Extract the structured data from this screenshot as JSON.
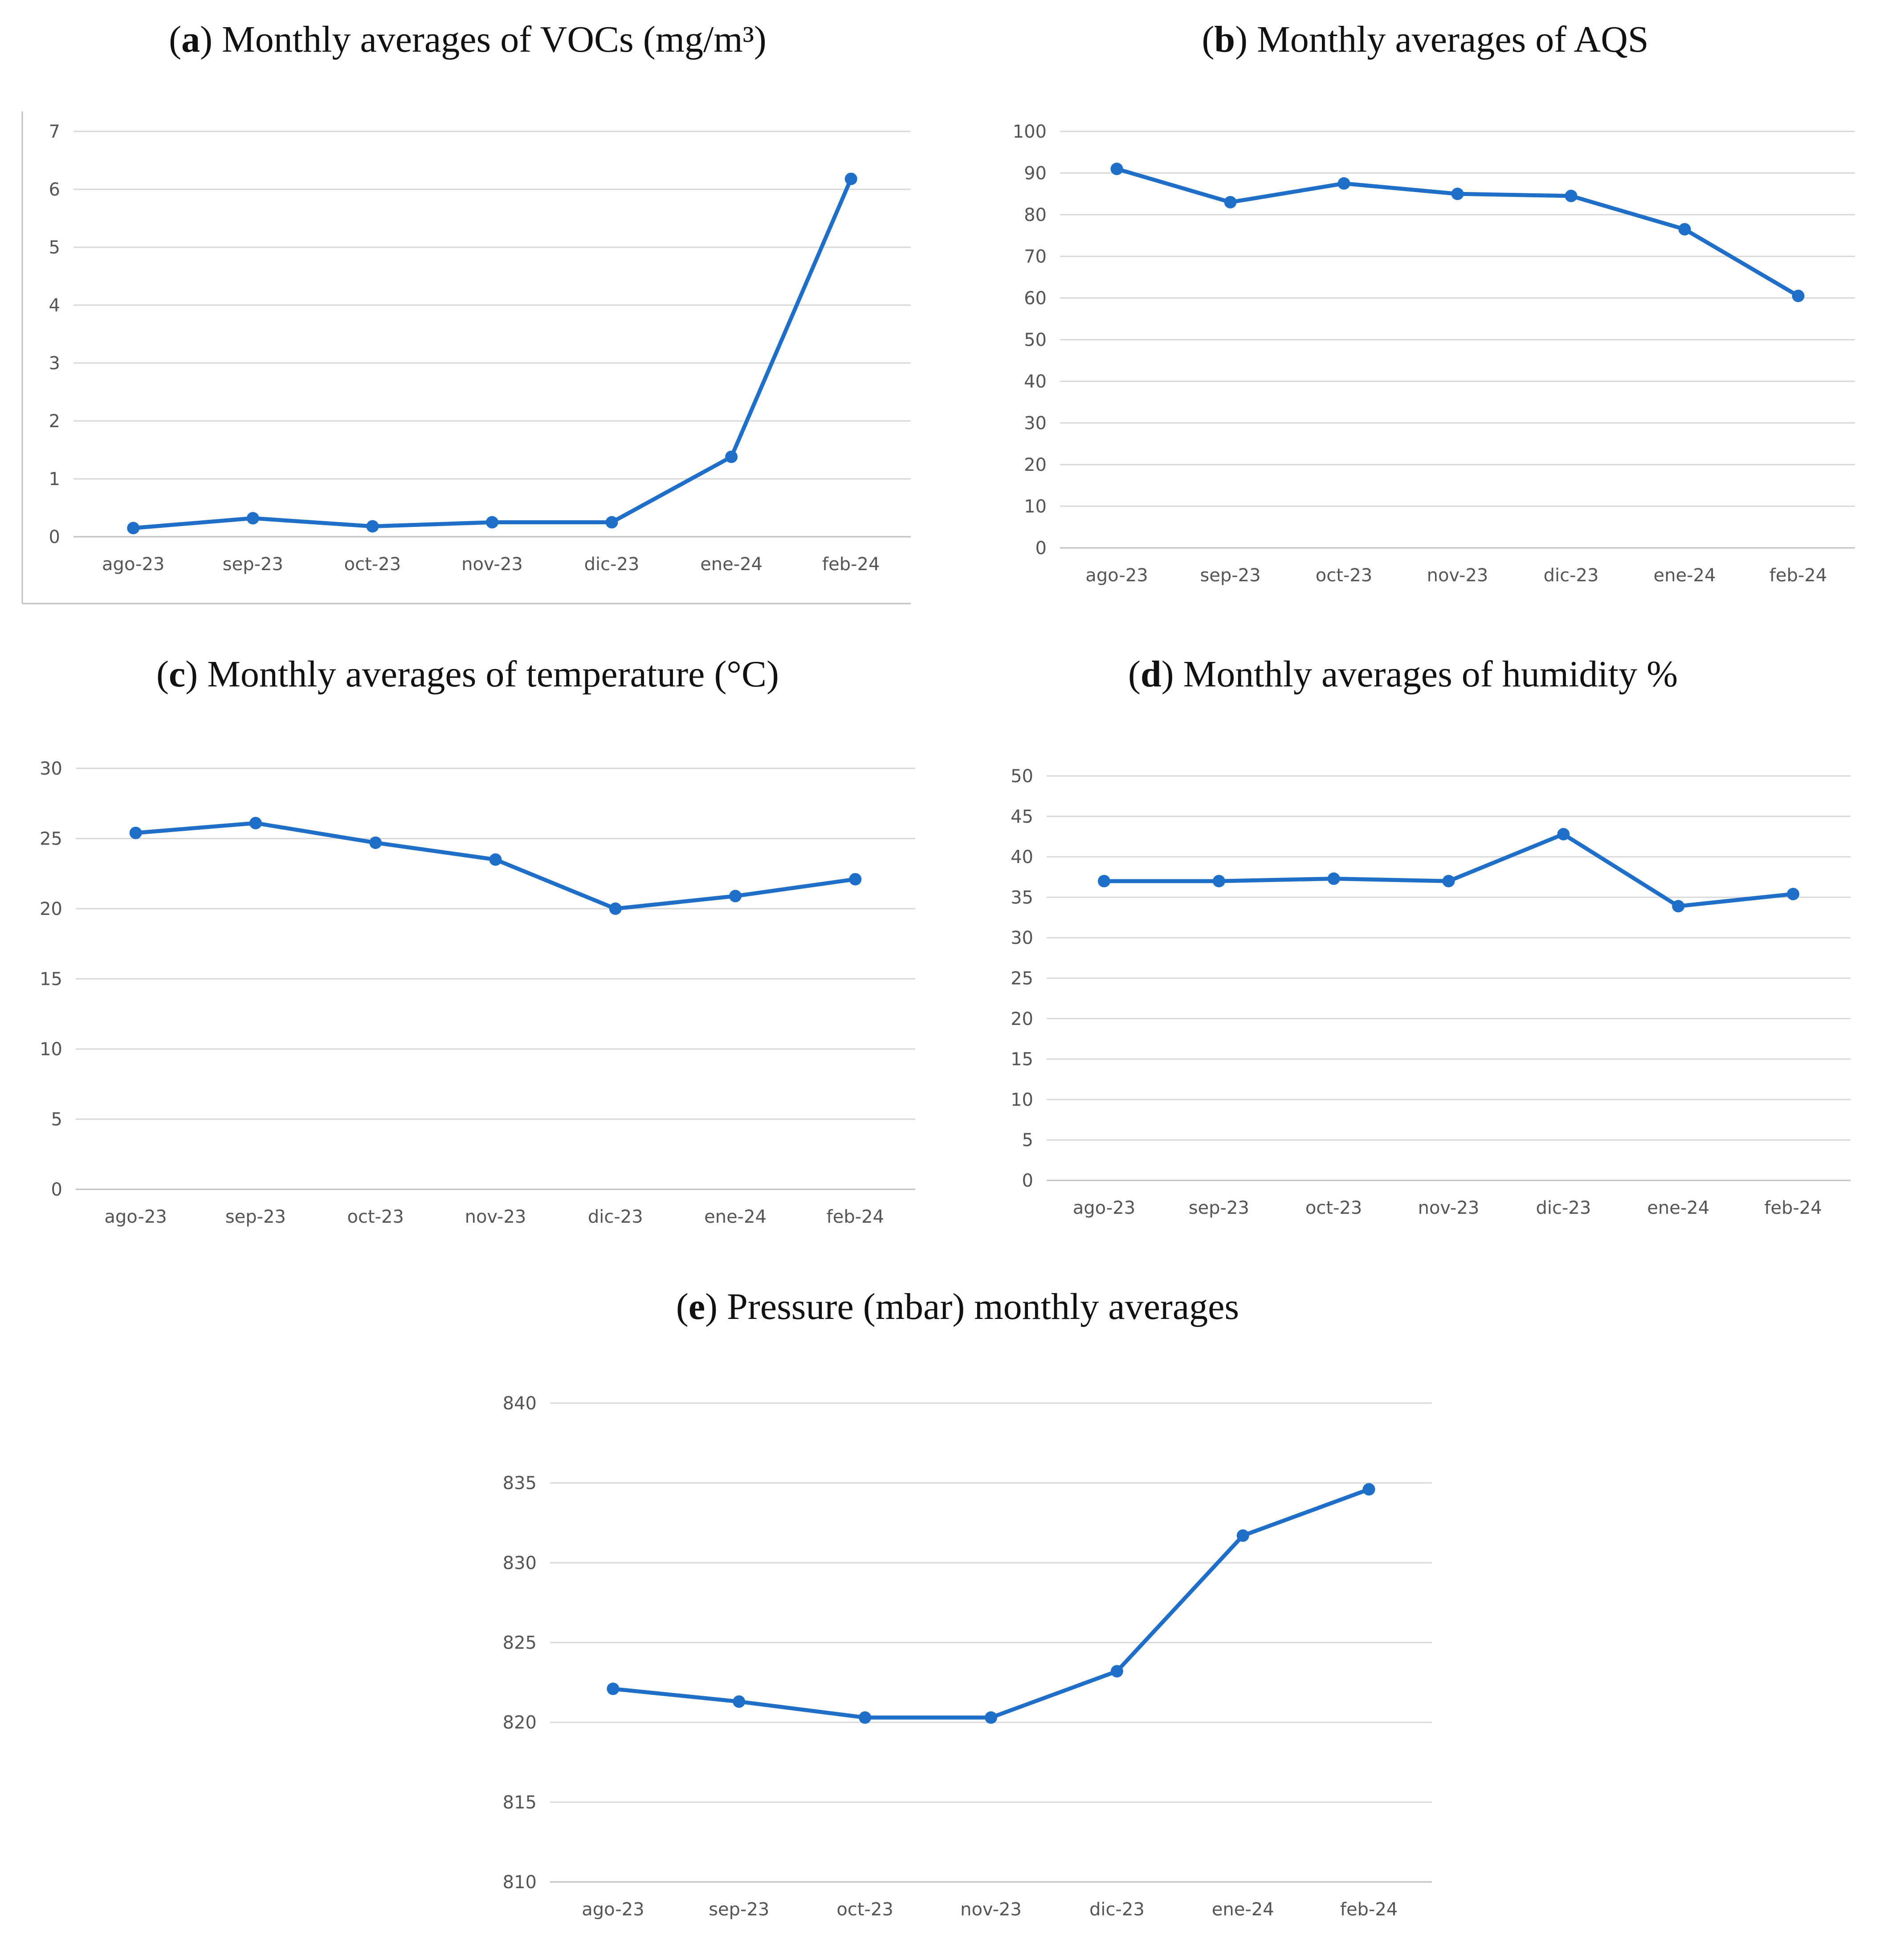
{
  "colors": {
    "series": "#1f6fc9",
    "grid": "#d9d9d9",
    "text": "#555555"
  },
  "chart_data": [
    {
      "id": "a",
      "type": "line",
      "title_letter": "a",
      "title": "Monthly averages of VOCs (mg/m³)",
      "categories": [
        "ago-23",
        "sep-23",
        "oct-23",
        "nov-23",
        "dic-23",
        "ene-24",
        "feb-24"
      ],
      "series": [
        {
          "name": "VOCs",
          "values": [
            0.15,
            0.32,
            0.18,
            0.25,
            0.25,
            1.38,
            6.18
          ]
        }
      ],
      "ylim": [
        0,
        7
      ],
      "yticks": [
        "0",
        "1",
        "2",
        "3",
        "4",
        "5",
        "6",
        "7"
      ],
      "xlabel": "",
      "ylabel": "",
      "grid": true
    },
    {
      "id": "b",
      "type": "line",
      "title_letter": "b",
      "title": "Monthly averages of AQS",
      "categories": [
        "ago-23",
        "sep-23",
        "oct-23",
        "nov-23",
        "dic-23",
        "ene-24",
        "feb-24"
      ],
      "series": [
        {
          "name": "AQS",
          "values": [
            91,
            83,
            87.5,
            85,
            84.5,
            76.5,
            60.5
          ]
        }
      ],
      "ylim": [
        0,
        100
      ],
      "yticks": [
        "0",
        "10",
        "20",
        "30",
        "40",
        "50",
        "60",
        "70",
        "80",
        "90",
        "100"
      ],
      "xlabel": "",
      "ylabel": "",
      "grid": true
    },
    {
      "id": "c",
      "type": "line",
      "title_letter": "c",
      "title": "Monthly averages of temperature (°C)",
      "categories": [
        "ago-23",
        "sep-23",
        "oct-23",
        "nov-23",
        "dic-23",
        "ene-24",
        "feb-24"
      ],
      "series": [
        {
          "name": "Temperature",
          "values": [
            25.4,
            26.1,
            24.7,
            23.5,
            20.0,
            20.9,
            22.1
          ]
        }
      ],
      "ylim": [
        0,
        30
      ],
      "yticks": [
        "0",
        "5",
        "10",
        "15",
        "20",
        "25",
        "30"
      ],
      "xlabel": "",
      "ylabel": "",
      "grid": true
    },
    {
      "id": "d",
      "type": "line",
      "title_letter": "d",
      "title": "Monthly averages of humidity %",
      "categories": [
        "ago-23",
        "sep-23",
        "oct-23",
        "nov-23",
        "dic-23",
        "ene-24",
        "feb-24"
      ],
      "series": [
        {
          "name": "Humidity",
          "values": [
            37.0,
            37.0,
            37.3,
            37.0,
            42.8,
            33.9,
            35.4
          ]
        }
      ],
      "ylim": [
        0,
        50
      ],
      "yticks": [
        "0",
        "5",
        "10",
        "15",
        "20",
        "25",
        "30",
        "35",
        "40",
        "45",
        "50"
      ],
      "xlabel": "",
      "ylabel": "",
      "grid": true
    },
    {
      "id": "e",
      "type": "line",
      "title_letter": "e",
      "title": "Pressure (mbar) monthly averages",
      "categories": [
        "ago-23",
        "sep-23",
        "oct-23",
        "nov-23",
        "dic-23",
        "ene-24",
        "feb-24"
      ],
      "series": [
        {
          "name": "Pressure",
          "values": [
            822.1,
            821.3,
            820.3,
            820.3,
            823.2,
            831.7,
            834.6
          ]
        }
      ],
      "ylim": [
        810,
        840
      ],
      "yticks": [
        "810",
        "815",
        "820",
        "825",
        "830",
        "835",
        "840"
      ],
      "xlabel": "",
      "ylabel": "",
      "grid": true
    }
  ]
}
